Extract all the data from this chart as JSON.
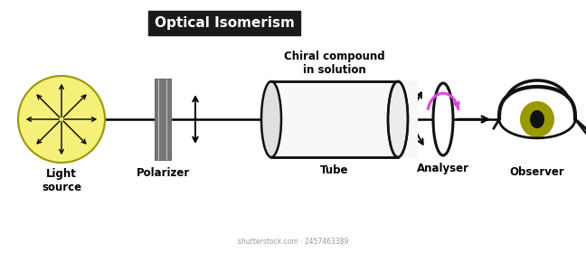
{
  "title": "Optical Isomerism",
  "title_fontsize": 11,
  "title_bg": "#1a1a1a",
  "title_color": "#ffffff",
  "bg_color": "#ffffff",
  "labels": {
    "light_source": "Light\nsource",
    "polarizer": "Polarizer",
    "chiral": "Chiral compound\nin solution",
    "tube": "Tube",
    "analyser": "Analyser",
    "observer": "Observer"
  },
  "label_fontsize": 8.5,
  "light_source_color": "#f5f07a",
  "light_source_edge": "#999900",
  "arrow_color": "#000000",
  "tube_edge": "#111111",
  "analyser_edge": "#111111",
  "pink_arc_color": "#dd44dd",
  "eye_iris_color": "#999900",
  "eye_outline_color": "#111111",
  "watermark": "shutterstock.com · 2457463389"
}
